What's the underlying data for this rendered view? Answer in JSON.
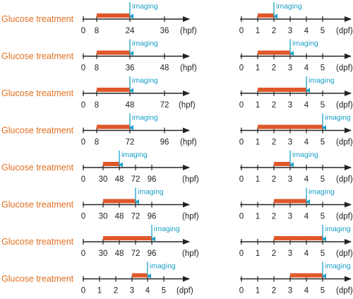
{
  "colors": {
    "bar": "#e0582a",
    "marker": "#1aa0c8",
    "label": "#e07020",
    "axis": "#222222"
  },
  "row_label": "Glucose treatment",
  "imaging_label": "imaging",
  "left_rows": [
    {
      "ticks": [
        "0",
        "8",
        "24",
        "36"
      ],
      "unit": "(hpf)",
      "treatment": [
        "8",
        "24"
      ],
      "imaging_at": "24"
    },
    {
      "ticks": [
        "0",
        "8",
        "36",
        "48"
      ],
      "unit": "(hpf)",
      "treatment": [
        "8",
        "36"
      ],
      "imaging_at": "36"
    },
    {
      "ticks": [
        "0",
        "8",
        "48",
        "72"
      ],
      "unit": "(hpf)",
      "treatment": [
        "8",
        "48"
      ],
      "imaging_at": "48"
    },
    {
      "ticks": [
        "0",
        "8",
        "72",
        "96"
      ],
      "unit": "(hpf)",
      "treatment": [
        "8",
        "72"
      ],
      "imaging_at": "72"
    },
    {
      "ticks": [
        "0",
        "30",
        "48",
        "72",
        "96"
      ],
      "unit": "(hpf)",
      "treatment": [
        "30",
        "48"
      ],
      "imaging_at": "48"
    },
    {
      "ticks": [
        "0",
        "30",
        "48",
        "72",
        "96"
      ],
      "unit": "(hpf)",
      "treatment": [
        "30",
        "72"
      ],
      "imaging_at": "72"
    },
    {
      "ticks": [
        "0",
        "30",
        "48",
        "72",
        "96"
      ],
      "unit": "(hpf)",
      "treatment": [
        "30",
        "96"
      ],
      "imaging_at": "96"
    },
    {
      "ticks": [
        "0",
        "1",
        "2",
        "3",
        "4",
        "5"
      ],
      "unit": "(dpf)",
      "treatment": [
        "3",
        "4"
      ],
      "imaging_at": "4"
    }
  ],
  "right_rows": [
    {
      "ticks": [
        "0",
        "1",
        "2",
        "3",
        "4",
        "5"
      ],
      "unit": "(dpf)",
      "treatment": [
        "1",
        "2"
      ],
      "imaging_at": "2"
    },
    {
      "ticks": [
        "0",
        "1",
        "2",
        "3",
        "4",
        "5"
      ],
      "unit": "(dpf)",
      "treatment": [
        "1",
        "3"
      ],
      "imaging_at": "3"
    },
    {
      "ticks": [
        "0",
        "1",
        "2",
        "3",
        "4",
        "5"
      ],
      "unit": "(dpf)",
      "treatment": [
        "1",
        "4"
      ],
      "imaging_at": "4"
    },
    {
      "ticks": [
        "0",
        "1",
        "2",
        "3",
        "4",
        "5"
      ],
      "unit": "(dpf)",
      "treatment": [
        "1",
        "5"
      ],
      "imaging_at": "5"
    },
    {
      "ticks": [
        "0",
        "1",
        "2",
        "3",
        "4",
        "5"
      ],
      "unit": "(dpf)",
      "treatment": [
        "2",
        "3"
      ],
      "imaging_at": "3"
    },
    {
      "ticks": [
        "0",
        "1",
        "2",
        "3",
        "4",
        "5"
      ],
      "unit": "(dpf)",
      "treatment": [
        "2",
        "4"
      ],
      "imaging_at": "4"
    },
    {
      "ticks": [
        "0",
        "1",
        "2",
        "3",
        "4",
        "5"
      ],
      "unit": "(dpf)",
      "treatment": [
        "2",
        "5"
      ],
      "imaging_at": "5"
    },
    {
      "ticks": [
        "0",
        "1",
        "2",
        "3",
        "4",
        "5"
      ],
      "unit": "(dpf)",
      "treatment": [
        "3",
        "5"
      ],
      "imaging_at": "5"
    }
  ]
}
